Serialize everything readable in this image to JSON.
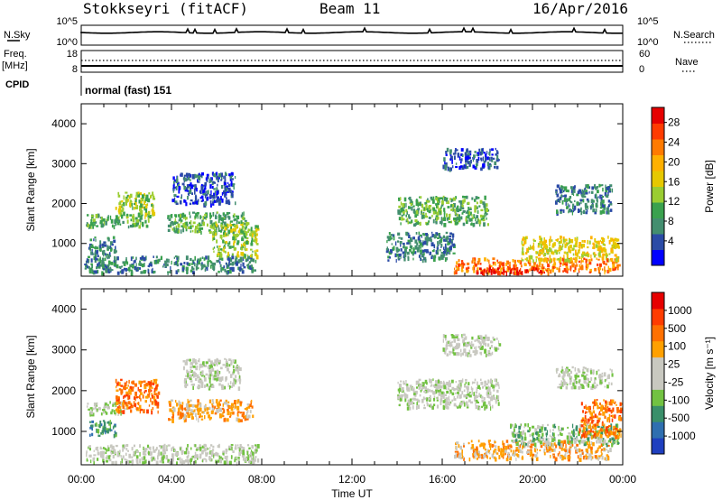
{
  "header": {
    "station": "Stokkseyri (fitACF)",
    "beam": "Beam 11",
    "date": "16/Apr/2016"
  },
  "summary": {
    "nsky_label": "N.Sky",
    "nsky_ticks": [
      "10^5",
      "10^0"
    ],
    "nsearch_label": "N.Search",
    "nsearch_ticks": [
      "10^5",
      "10^0"
    ],
    "freq_label": "Freq.",
    "freq_unit": "[MHz]",
    "freq_ticks": [
      "18",
      "8"
    ],
    "nave_label": "Nave",
    "nave_ticks": [
      "60",
      "0"
    ],
    "cpid_label": "CPID",
    "cpid_value": "normal (fast) 151"
  },
  "chart_data": [
    {
      "type": "heatmap",
      "name": "power",
      "ylabel": "Slant Range [km]",
      "xlabel": "",
      "ylim": [
        180,
        4500
      ],
      "xlim": [
        0,
        24
      ],
      "yticks": [
        "1000",
        "2000",
        "3000",
        "4000"
      ],
      "colorbar": {
        "label": "Power [dB]",
        "ticks": [
          "4",
          "8",
          "12",
          "16",
          "20",
          "24",
          "28"
        ],
        "colors": [
          "#0000ff",
          "#2b4ba6",
          "#438e6f",
          "#3aa14e",
          "#9acd32",
          "#e6c800",
          "#ffb000",
          "#ff7a00",
          "#ff3b00",
          "#e60000"
        ]
      },
      "regions": [
        {
          "t0": 0.1,
          "t1": 7.8,
          "r0": 300,
          "r1": 700,
          "level": 2
        },
        {
          "t0": 0.2,
          "t1": 3.0,
          "r0": 1450,
          "r1": 1750,
          "level": 3
        },
        {
          "t0": 1.5,
          "t1": 3.2,
          "r0": 1700,
          "r1": 2300,
          "level": 4
        },
        {
          "t0": 3.8,
          "t1": 7.4,
          "r0": 1300,
          "r1": 1800,
          "level": 3
        },
        {
          "t0": 4.0,
          "t1": 6.8,
          "r0": 2000,
          "r1": 2800,
          "level": 1
        },
        {
          "t0": 5.8,
          "t1": 7.8,
          "r0": 700,
          "r1": 1500,
          "level": 4
        },
        {
          "t0": 0.3,
          "t1": 1.5,
          "r0": 700,
          "r1": 1200,
          "level": 2
        },
        {
          "t0": 14.0,
          "t1": 18.0,
          "r0": 1500,
          "r1": 2200,
          "level": 3
        },
        {
          "t0": 16.5,
          "t1": 23.8,
          "r0": 300,
          "r1": 650,
          "level": 7
        },
        {
          "t0": 17.5,
          "t1": 20.5,
          "r0": 280,
          "r1": 420,
          "level": 9
        },
        {
          "t0": 19.5,
          "t1": 23.8,
          "r0": 600,
          "r1": 1200,
          "level": 5
        },
        {
          "t0": 13.5,
          "t1": 16.5,
          "r0": 600,
          "r1": 1300,
          "level": 2
        },
        {
          "t0": 16.0,
          "t1": 18.5,
          "r0": 2900,
          "r1": 3400,
          "level": 1
        },
        {
          "t0": 21.0,
          "t1": 23.5,
          "r0": 1800,
          "r1": 2500,
          "level": 2
        }
      ]
    },
    {
      "type": "heatmap",
      "name": "velocity",
      "ylabel": "Slant Range [km]",
      "xlabel": "Time UT",
      "ylim": [
        180,
        4500
      ],
      "xlim": [
        0,
        24
      ],
      "yticks": [
        "1000",
        "2000",
        "3000",
        "4000"
      ],
      "xticks": [
        "00:00",
        "04:00",
        "08:00",
        "12:00",
        "16:00",
        "20:00",
        "00:00"
      ],
      "colorbar": {
        "label": "Velocity [m s⁻¹]",
        "ticks": [
          "1000",
          "500",
          "100",
          "25",
          "-25",
          "-100",
          "-500",
          "-1000"
        ],
        "colors": [
          "#1f3fbf",
          "#2f6fb0",
          "#3a8f6a",
          "#72c242",
          "#c8c8c0",
          "#c8c8c0",
          "#ffa000",
          "#ff7000",
          "#ff3c00",
          "#e60000"
        ]
      },
      "regions": [
        {
          "t0": 0.2,
          "t1": 7.8,
          "r0": 250,
          "r1": 700,
          "level": 4
        },
        {
          "t0": 0.2,
          "t1": 2.0,
          "r0": 1450,
          "r1": 1750,
          "level": 4
        },
        {
          "t0": 1.5,
          "t1": 3.4,
          "r0": 1500,
          "r1": 2300,
          "level": 7
        },
        {
          "t0": 3.8,
          "t1": 7.6,
          "r0": 1300,
          "r1": 1800,
          "level": 6
        },
        {
          "t0": 4.5,
          "t1": 7.0,
          "r0": 2100,
          "r1": 2800,
          "level": 4
        },
        {
          "t0": 14.0,
          "t1": 18.5,
          "r0": 1600,
          "r1": 2300,
          "level": 4
        },
        {
          "t0": 16.5,
          "t1": 23.5,
          "r0": 350,
          "r1": 800,
          "level": 6
        },
        {
          "t0": 19.0,
          "t1": 23.8,
          "r0": 700,
          "r1": 1200,
          "level": 3
        },
        {
          "t0": 22.0,
          "t1": 23.9,
          "r0": 900,
          "r1": 1800,
          "level": 7
        },
        {
          "t0": 0.3,
          "t1": 1.5,
          "r0": 900,
          "r1": 1300,
          "level": 2
        },
        {
          "t0": 16.0,
          "t1": 18.5,
          "r0": 2900,
          "r1": 3400,
          "level": 4
        },
        {
          "t0": 21.0,
          "t1": 23.5,
          "r0": 2100,
          "r1": 2600,
          "level": 4
        }
      ]
    }
  ]
}
